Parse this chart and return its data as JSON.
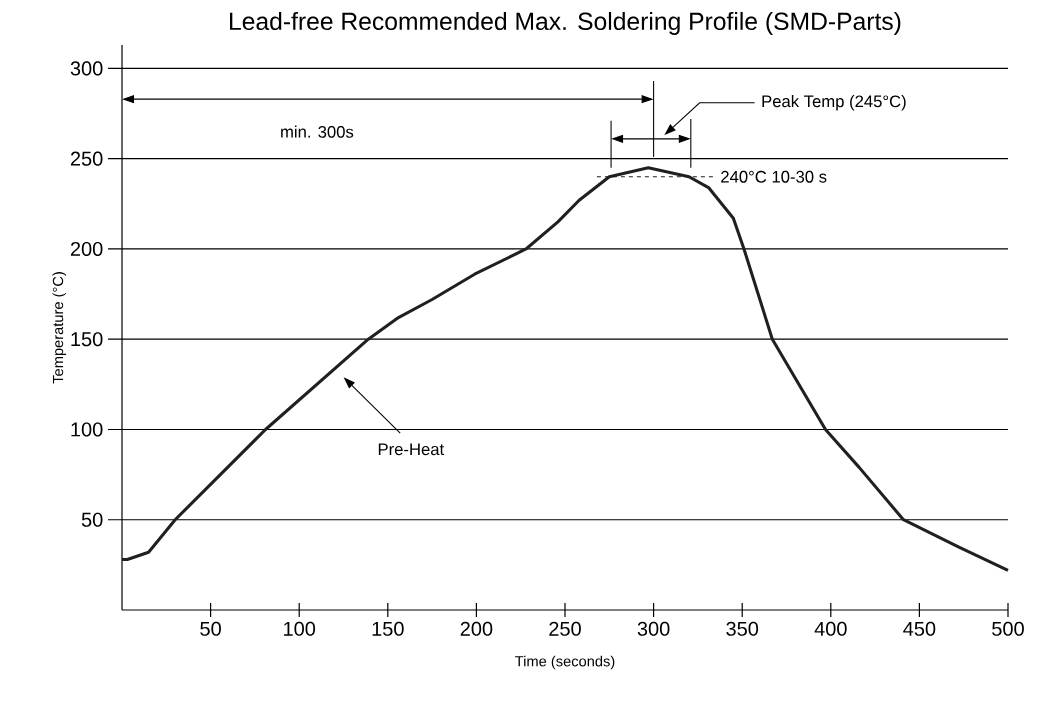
{
  "chart_data": {
    "type": "line",
    "title": "Lead-free Recommended Max.  Soldering Profile (SMD-Parts)",
    "xlabel": "Time (seconds)",
    "ylabel": "Temperature (°C)",
    "xlim": [
      0,
      500
    ],
    "ylim": [
      0,
      313
    ],
    "xticks": [
      50,
      100,
      150,
      200,
      250,
      300,
      350,
      400,
      450,
      500
    ],
    "yticks": [
      50,
      100,
      150,
      200,
      250,
      300
    ],
    "grid": "y",
    "marker": "none",
    "series": [
      {
        "color": "#231f20",
        "line_style": "solid",
        "x": [
          0,
          3,
          15,
          30,
          81,
          139,
          156,
          175,
          199,
          228,
          246,
          258,
          275,
          297,
          320,
          331,
          345,
          351,
          367,
          397,
          416,
          441,
          472,
          500
        ],
        "values": [
          28,
          28,
          32,
          50,
          100,
          150,
          162,
          172,
          186,
          200,
          215,
          227,
          240,
          245,
          240,
          234,
          217,
          200,
          150,
          100,
          79,
          50,
          35,
          22
        ]
      },
      {
        "color": "#231f20",
        "line_style": "dashed",
        "x": [
          268,
          335
        ],
        "values": [
          240,
          240
        ]
      }
    ],
    "annotations": [
      "min. 300s",
      "Peak Temp (245°C)",
      {
        "text": "240°C  10-30 s",
        "x": 335,
        "y": 240
      },
      "Pre-Heat"
    ]
  }
}
